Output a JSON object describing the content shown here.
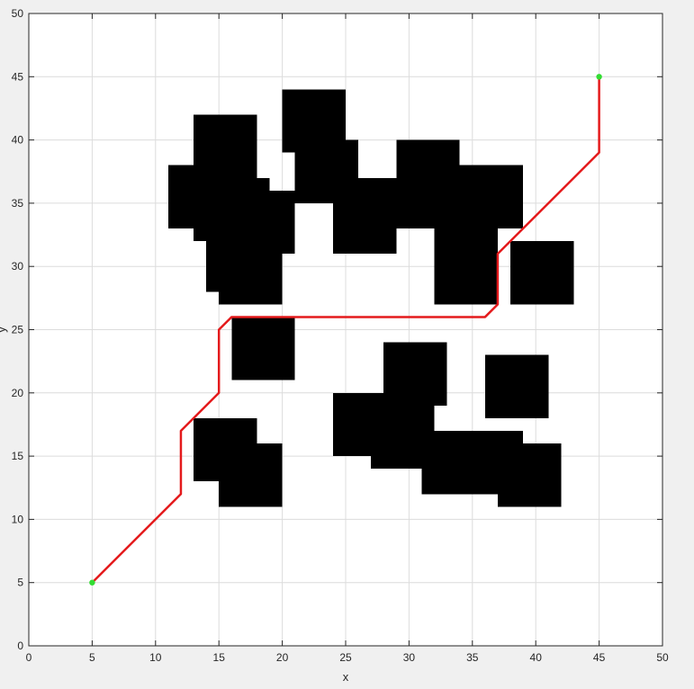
{
  "chart_data": {
    "type": "line",
    "title": "",
    "xlabel": "x",
    "ylabel": "y",
    "xlim": [
      0,
      50
    ],
    "ylim": [
      0,
      50
    ],
    "xticks": [
      0,
      5,
      10,
      15,
      20,
      25,
      30,
      35,
      40,
      45,
      50
    ],
    "yticks": [
      0,
      5,
      10,
      15,
      20,
      25,
      30,
      35,
      40,
      45,
      50
    ],
    "grid": true,
    "colors": {
      "path": "#e41a1c",
      "obstacle": "#000000",
      "endpoint": "#33dd33",
      "grid": "#dcdcdc",
      "axes_background": "#ffffff",
      "figure_background": "#f0f0f0"
    },
    "obstacles": [
      {
        "x0": 13,
        "x1": 18,
        "y0": 37,
        "y1": 42
      },
      {
        "x0": 11,
        "x1": 18,
        "y0": 33,
        "y1": 38
      },
      {
        "x0": 13,
        "x1": 19,
        "y0": 32,
        "y1": 37
      },
      {
        "x0": 17,
        "x1": 21,
        "y0": 31,
        "y1": 36
      },
      {
        "x0": 14,
        "x1": 20,
        "y0": 28,
        "y1": 33
      },
      {
        "x0": 15,
        "x1": 20,
        "y0": 27,
        "y1": 31
      },
      {
        "x0": 20,
        "x1": 25,
        "y0": 39,
        "y1": 44
      },
      {
        "x0": 21,
        "x1": 26,
        "y0": 35,
        "y1": 40
      },
      {
        "x0": 24,
        "x1": 29,
        "y0": 31,
        "y1": 37
      },
      {
        "x0": 29,
        "x1": 34,
        "y0": 33,
        "y1": 40
      },
      {
        "x0": 34,
        "x1": 39,
        "y0": 33,
        "y1": 38
      },
      {
        "x0": 32,
        "x1": 37,
        "y0": 27,
        "y1": 33
      },
      {
        "x0": 38,
        "x1": 43,
        "y0": 27,
        "y1": 32
      },
      {
        "x0": 16,
        "x1": 21,
        "y0": 21,
        "y1": 26
      },
      {
        "x0": 28,
        "x1": 33,
        "y0": 19,
        "y1": 24
      },
      {
        "x0": 24,
        "x1": 29,
        "y0": 15,
        "y1": 20
      },
      {
        "x0": 27,
        "x1": 32,
        "y0": 14,
        "y1": 19
      },
      {
        "x0": 31,
        "x1": 39,
        "y0": 12,
        "y1": 17
      },
      {
        "x0": 37,
        "x1": 42,
        "y0": 11,
        "y1": 16
      },
      {
        "x0": 36,
        "x1": 41,
        "y0": 18,
        "y1": 23
      },
      {
        "x0": 13,
        "x1": 18,
        "y0": 13,
        "y1": 18
      },
      {
        "x0": 15,
        "x1": 20,
        "y0": 11,
        "y1": 16
      }
    ],
    "series": [
      {
        "x": [
          5,
          12,
          12,
          15,
          15,
          16,
          36,
          37,
          37,
          45,
          45
        ],
        "y": [
          5,
          12,
          17,
          20,
          25,
          26,
          26,
          27,
          31,
          39,
          45
        ]
      }
    ],
    "start": {
      "x": 5,
      "y": 5
    },
    "goal": {
      "x": 45,
      "y": 45
    }
  }
}
